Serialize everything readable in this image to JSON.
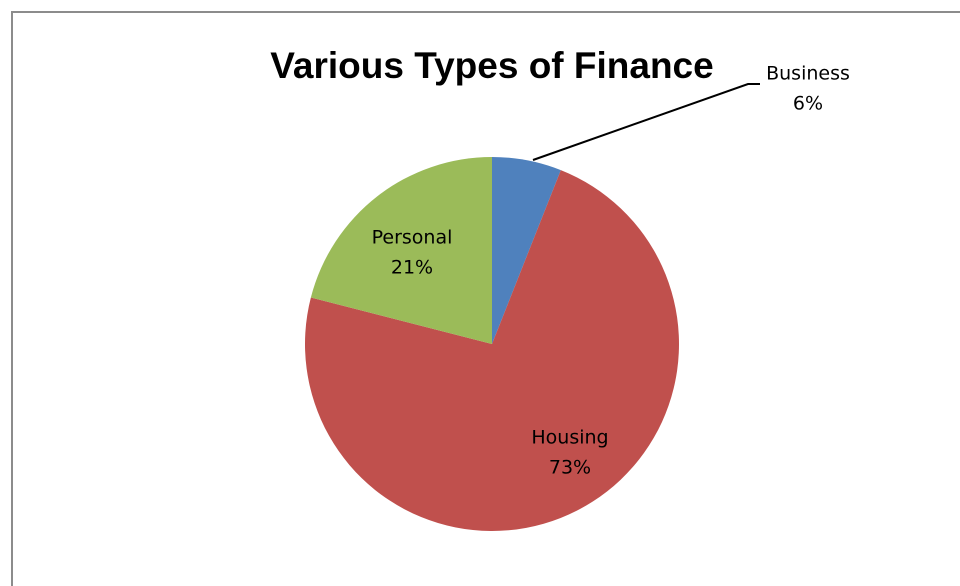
{
  "chart_data": {
    "type": "pie",
    "title": "Various Types of Finance",
    "categories": [
      "Business",
      "Housing",
      "Personal"
    ],
    "values": [
      6,
      73,
      21
    ],
    "value_labels": [
      "6%",
      "73%",
      "21%"
    ],
    "colors": [
      "#4f81bd",
      "#c0504d",
      "#9bbb59"
    ]
  }
}
